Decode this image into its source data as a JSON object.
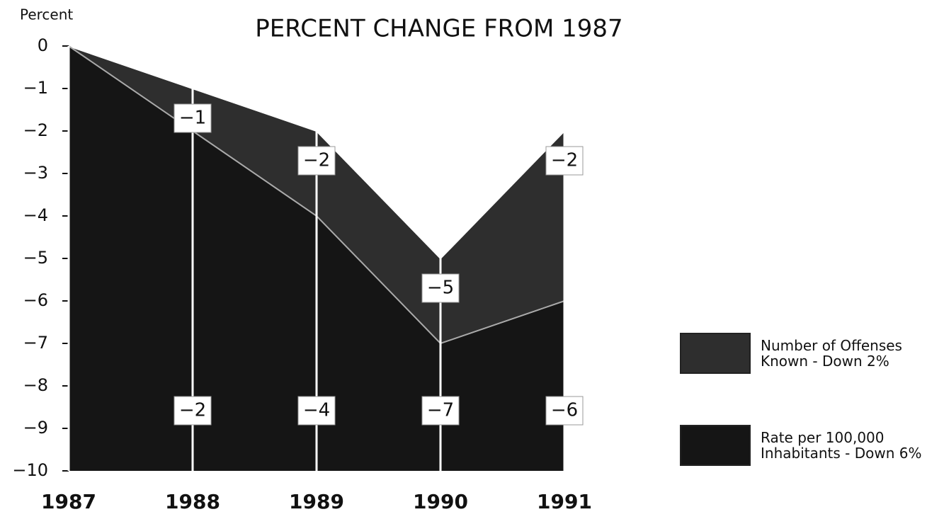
{
  "chart_data": {
    "type": "area",
    "title": "PERCENT CHANGE FROM 1987",
    "y_label": "Percent",
    "categories": [
      "1987",
      "1988",
      "1989",
      "1990",
      "1991"
    ],
    "series": [
      {
        "name": "Number of Offenses Known - Down 2%",
        "color": "#2e2e2e",
        "values": [
          0,
          -1,
          -2,
          -5,
          -2
        ],
        "value_labels": [
          null,
          "−1",
          "−2",
          "−5",
          "−2"
        ]
      },
      {
        "name": "Rate per 100,000 Inhabitants - Down 6%",
        "color": "#151515",
        "values": [
          0,
          -2,
          -4,
          -7,
          -6
        ],
        "value_labels": [
          null,
          "−2",
          "−4",
          "−7",
          "−6"
        ]
      }
    ],
    "ylim": [
      -10,
      0
    ],
    "yticks": [
      0,
      {
        "value": -1,
        "label": "−1"
      },
      {
        "value": -2,
        "label": "−2"
      },
      {
        "value": -3,
        "label": "−3"
      },
      {
        "value": -4,
        "label": "−4"
      },
      {
        "value": -5,
        "label": "−5"
      },
      {
        "value": -6,
        "label": "−6"
      },
      {
        "value": -7,
        "label": "−7"
      },
      {
        "value": -8,
        "label": "−8"
      },
      {
        "value": -9,
        "label": "−9"
      },
      {
        "value": -10,
        "label": "−10"
      }
    ],
    "legend": "right"
  }
}
